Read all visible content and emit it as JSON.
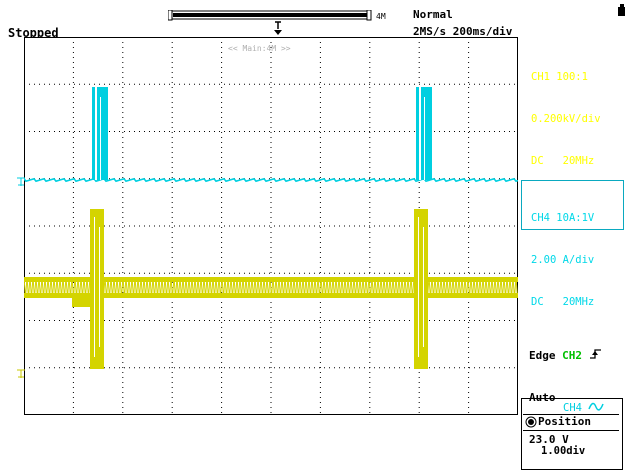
{
  "header": {
    "status": "Stopped",
    "trigger_mode": "Normal",
    "sample_rate": "2MS/s",
    "time_per_div": "200ms/div",
    "memory_length": "4M",
    "zoom_label": "<< Main:4M >>"
  },
  "channels": {
    "ch1": {
      "name": "CH1",
      "probe": "100:1",
      "scale": "0.200kV/div",
      "coupling": "DC",
      "bandwidth": "20MHz",
      "color": "#ffff00"
    },
    "ch4": {
      "name": "CH4",
      "probe": "10A:1V",
      "scale": "2.00 A/div",
      "coupling": "DC",
      "bandwidth": "20MHz",
      "color": "#00cfe0"
    }
  },
  "trigger": {
    "type": "Edge",
    "source": "CH2",
    "mode": "Auto",
    "level": "23.0 V",
    "source_color": "#00c000"
  },
  "position_panel": {
    "channel": "CH4",
    "title": "Position",
    "value": "1.00div"
  },
  "icons": {
    "corner": "document-icon",
    "trigger_slope": "rising-edge-icon",
    "trigger_position": "trigger-position-icon",
    "knob": "knob-icon"
  }
}
